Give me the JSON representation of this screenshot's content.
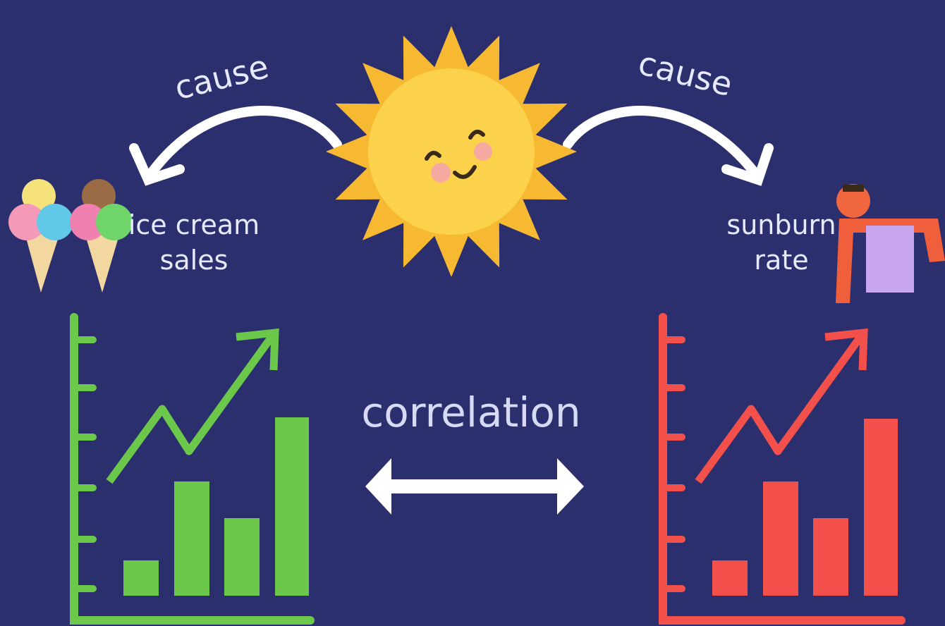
{
  "arrows": [
    {
      "label": "cause"
    },
    {
      "label": "cause"
    }
  ],
  "nodes": [
    {
      "label": [
        "ice cream",
        "sales"
      ]
    },
    {
      "label": [
        "sunburn",
        "rate"
      ]
    }
  ],
  "link": {
    "label": "correlation"
  }
}
